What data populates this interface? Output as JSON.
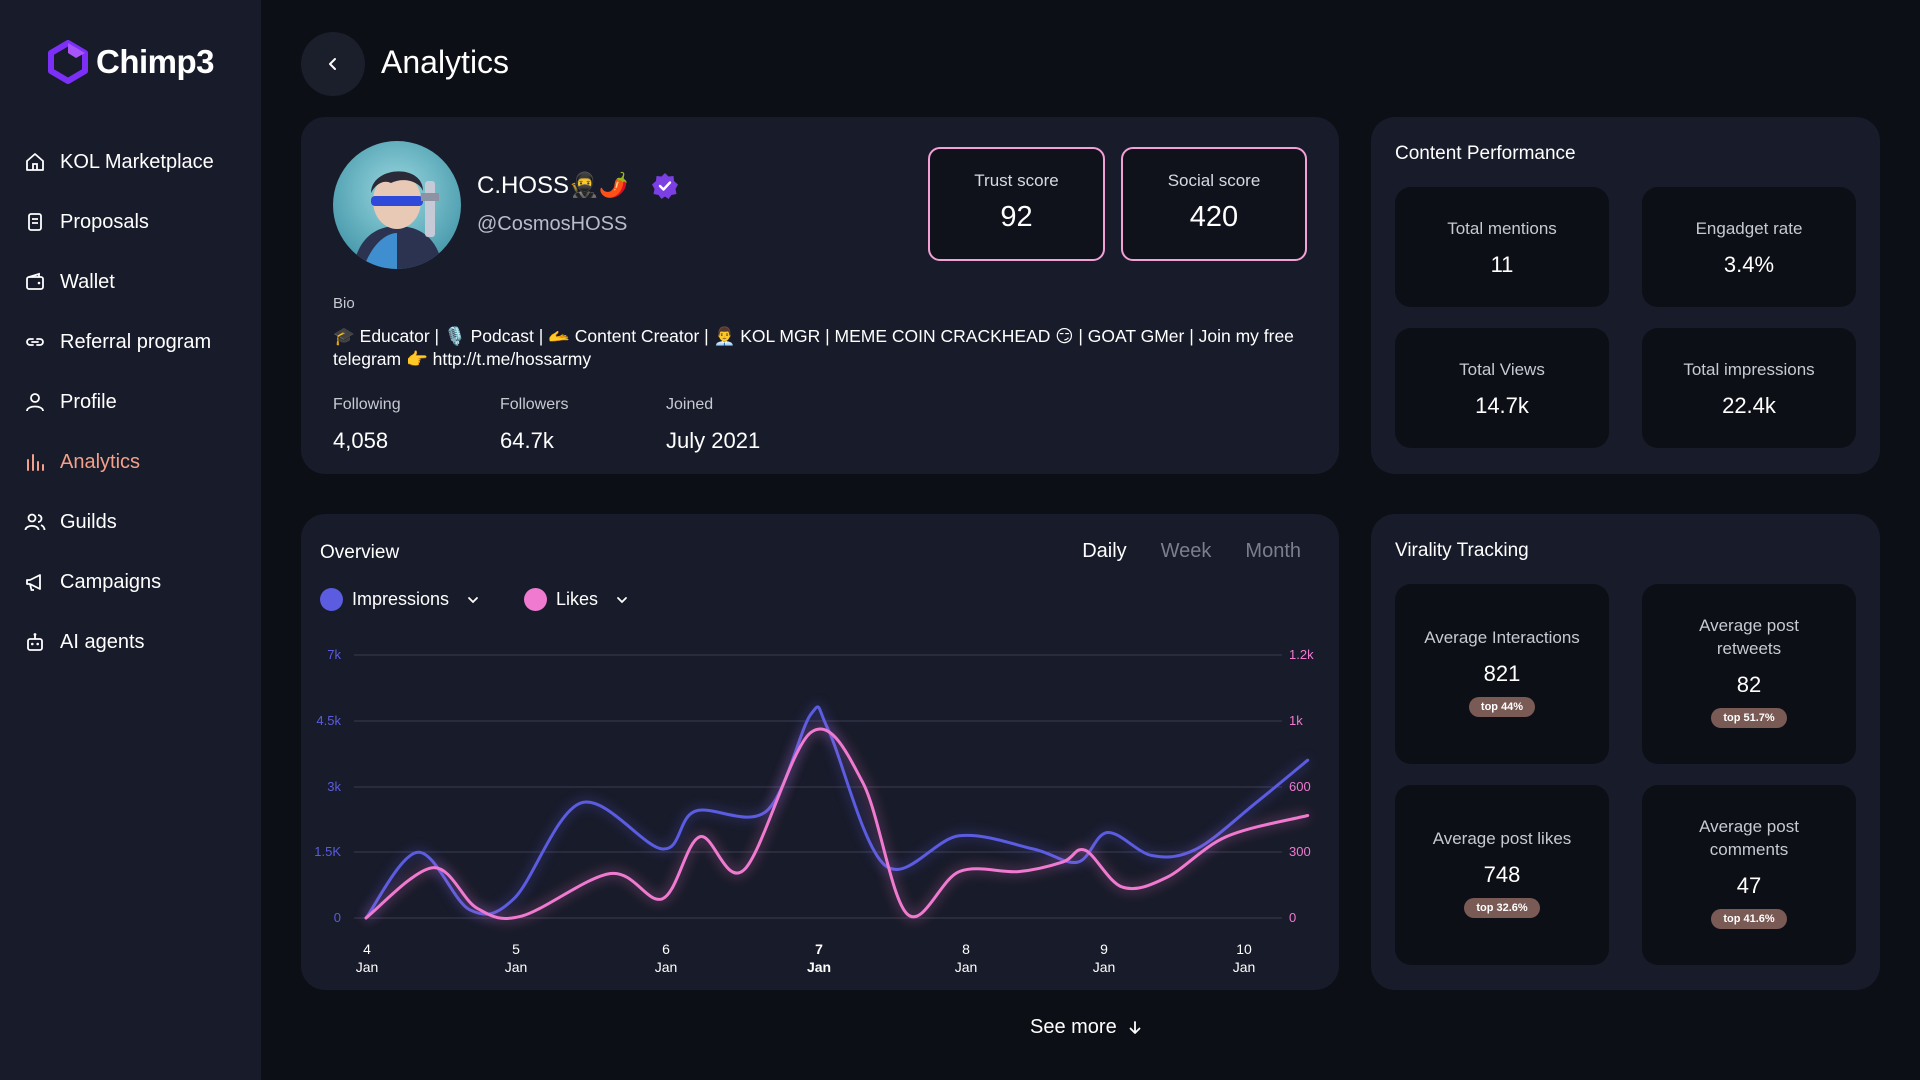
{
  "app": {
    "name": "Chimp3"
  },
  "sidebar": {
    "items": [
      {
        "label": "KOL Marketplace",
        "icon": "home-icon"
      },
      {
        "label": "Proposals",
        "icon": "document-icon"
      },
      {
        "label": "Wallet",
        "icon": "wallet-icon"
      },
      {
        "label": "Referral program",
        "icon": "link-icon"
      },
      {
        "label": "Profile",
        "icon": "user-icon"
      },
      {
        "label": "Analytics",
        "icon": "bar-chart-icon",
        "active": true
      },
      {
        "label": "Guilds",
        "icon": "users-icon"
      },
      {
        "label": "Campaigns",
        "icon": "megaphone-icon"
      },
      {
        "label": "AI agents",
        "icon": "robot-icon"
      }
    ]
  },
  "header": {
    "title": "Analytics"
  },
  "profile": {
    "name": "C.HOSS🥷🌶️",
    "handle": "@CosmosHOSS",
    "trust_label": "Trust score",
    "trust_value": "92",
    "social_label": "Social score",
    "social_value": "420",
    "bio_label": "Bio",
    "bio": "🎓 Educator | 🎙️ Podcast | 🫴 Content Creator | 👨‍💼 KOL MGR | MEME COIN CRACKHEAD 😏 | GOAT GMer | Join my free telegram 👉 http://t.me/hossarmy",
    "following_label": "Following",
    "following": "4,058",
    "followers_label": "Followers",
    "followers": "64.7k",
    "joined_label": "Joined",
    "joined": "July 2021"
  },
  "content_performance": {
    "title": "Content Performance",
    "tiles": [
      {
        "label": "Total mentions",
        "value": "11"
      },
      {
        "label": "Engadget rate",
        "value": "3.4%"
      },
      {
        "label": "Total Views",
        "value": "14.7k"
      },
      {
        "label": "Total impressions",
        "value": "22.4k"
      }
    ]
  },
  "virality": {
    "title": "Virality Tracking",
    "tiles": [
      {
        "label": "Average Interactions",
        "value": "821",
        "badge": "top 44%"
      },
      {
        "label": "Average post retweets",
        "value": "82",
        "badge": "top 51.7%"
      },
      {
        "label": "Average post likes",
        "value": "748",
        "badge": "top 32.6%"
      },
      {
        "label": "Average post comments",
        "value": "47",
        "badge": "top 41.6%"
      }
    ]
  },
  "overview": {
    "title": "Overview",
    "tabs": [
      "Daily",
      "Week",
      "Month"
    ],
    "active_tab": "Daily",
    "legend": [
      {
        "name": "Impressions",
        "color": "#5b5ce0"
      },
      {
        "name": "Likes",
        "color": "#f07ad0"
      }
    ]
  },
  "chart_data": {
    "type": "line",
    "left_axis": {
      "ticks": [
        "0",
        "1.5K",
        "3k",
        "4.5k",
        "7k"
      ]
    },
    "right_axis": {
      "ticks": [
        "0",
        "300",
        "600",
        "1k",
        "1.2k"
      ]
    },
    "x_ticks": [
      {
        "day": "4",
        "month": "Jan"
      },
      {
        "day": "5",
        "month": "Jan"
      },
      {
        "day": "6",
        "month": "Jan"
      },
      {
        "day": "7",
        "month": "Jan",
        "bold": true
      },
      {
        "day": "8",
        "month": "Jan"
      },
      {
        "day": "9",
        "month": "Jan"
      },
      {
        "day": "10",
        "month": "Jan"
      }
    ],
    "grid": true,
    "series": [
      {
        "name": "Impressions",
        "color": "#5b5ce0",
        "axis": "left",
        "x": [
          0,
          0.35,
          0.7,
          1.0,
          1.45,
          2.0,
          2.22,
          2.7,
          3.0,
          3.12,
          3.5,
          4.0,
          4.5,
          4.8,
          5.0,
          5.3,
          5.6,
          6.0,
          6.35
        ],
        "y": [
          0,
          2000,
          250,
          600,
          3500,
          2100,
          3250,
          3250,
          6200,
          5700,
          1600,
          2500,
          2100,
          1700,
          2600,
          1900,
          2100,
          3500,
          4800
        ]
      },
      {
        "name": "Likes",
        "color": "#f07ad0",
        "axis": "right",
        "x": [
          0,
          0.45,
          0.75,
          1.05,
          1.65,
          2.0,
          2.25,
          2.55,
          3.0,
          3.35,
          3.65,
          4.0,
          4.4,
          4.7,
          4.85,
          5.1,
          5.4,
          5.8,
          6.35
        ],
        "y": [
          0,
          260,
          50,
          10,
          230,
          100,
          420,
          250,
          960,
          700,
          20,
          240,
          240,
          290,
          350,
          160,
          210,
          420,
          530
        ]
      }
    ]
  },
  "see_more": "See more"
}
